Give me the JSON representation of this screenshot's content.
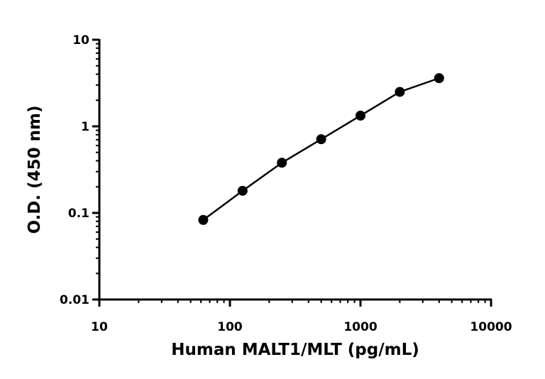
{
  "chart_data": {
    "type": "scatter",
    "x_label": "Human MALT1/MLT (pg/mL)",
    "y_label": "O.D. (450 nm)",
    "x": [
      62.5,
      125,
      250,
      500,
      1000,
      2000,
      4000
    ],
    "series": [
      {
        "color": "#000000",
        "values": [
          0.083,
          0.18,
          0.38,
          0.71,
          1.33,
          2.5,
          3.6
        ]
      }
    ],
    "xscale": "log",
    "yscale": "log",
    "xlim": [
      10,
      10000
    ],
    "ylim": [
      0.01,
      10
    ],
    "xticks": [
      10,
      100,
      1000,
      10000
    ],
    "yticks": [
      0.01,
      0.1,
      1,
      10
    ],
    "xminorticks": [
      20,
      30,
      40,
      50,
      60,
      70,
      80,
      90,
      200,
      300,
      400,
      500,
      600,
      700,
      800,
      900,
      2000,
      3000,
      4000,
      5000,
      6000,
      7000,
      8000,
      9000
    ],
    "yminorticks": [
      0.02,
      0.03,
      0.04,
      0.05,
      0.06,
      0.07,
      0.08,
      0.09,
      0.2,
      0.3,
      0.4,
      0.5,
      0.6,
      0.7,
      0.8,
      0.9,
      2,
      3,
      4,
      5,
      6,
      7,
      8,
      9
    ],
    "line": true,
    "grid": false
  }
}
